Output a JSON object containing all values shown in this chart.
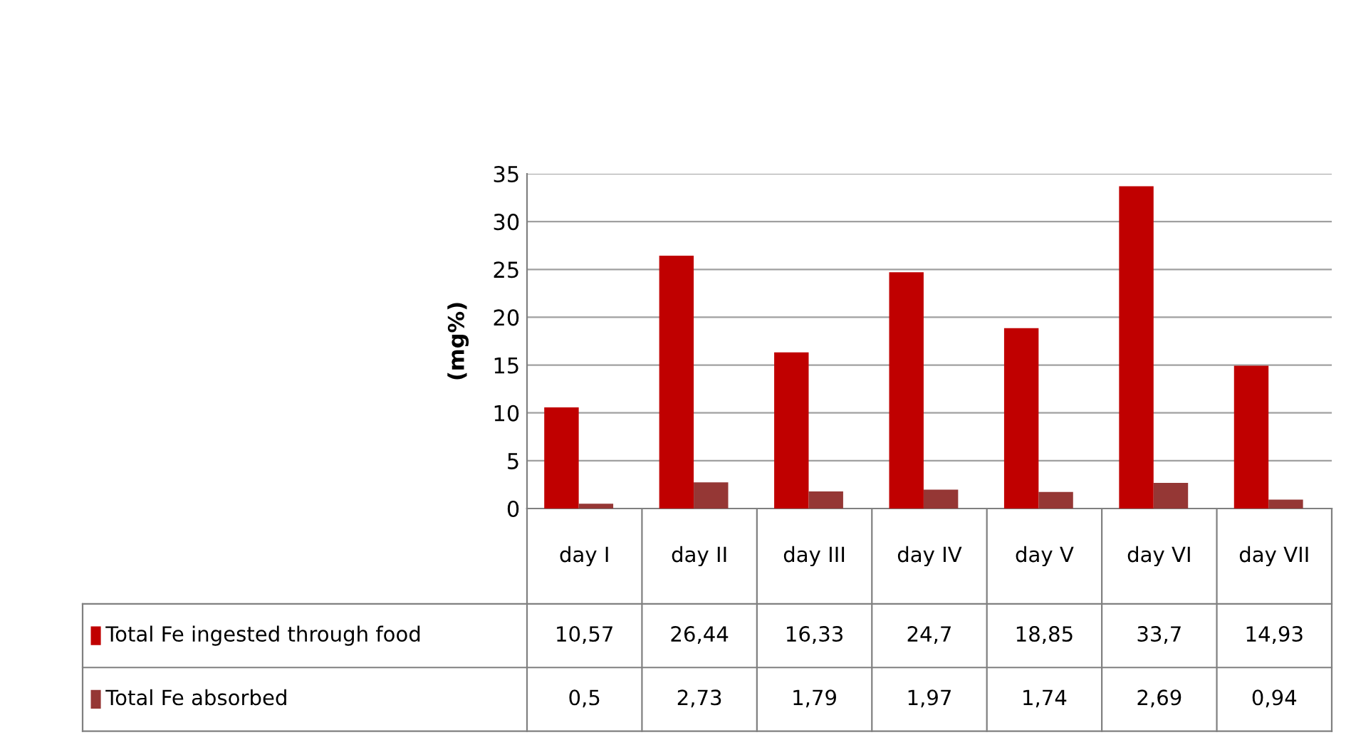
{
  "chart_data": {
    "type": "bar",
    "ylabel": "(mg%)",
    "categories": [
      "day I",
      "day II",
      "day III",
      "day IV",
      "day V",
      "day VI",
      "day VII"
    ],
    "series": [
      {
        "name": "Total Fe ingested through food",
        "color": "#c00000",
        "values": [
          10.57,
          26.44,
          16.33,
          24.7,
          18.85,
          33.7,
          14.93
        ],
        "value_labels": [
          "10,57",
          "26,44",
          "16,33",
          "24,7",
          "18,85",
          "33,7",
          "14,93"
        ]
      },
      {
        "name": "Total Fe absorbed",
        "color": "#953735",
        "values": [
          0.5,
          2.73,
          1.79,
          1.97,
          1.74,
          2.69,
          0.94
        ],
        "value_labels": [
          "0,5",
          "2,73",
          "1,79",
          "1,97",
          "1,74",
          "2,69",
          "0,94"
        ]
      }
    ],
    "ylim": [
      0,
      35
    ],
    "yticks": [
      0,
      5,
      10,
      15,
      20,
      25,
      30,
      35
    ],
    "grid": "y",
    "legend": "bottom"
  }
}
